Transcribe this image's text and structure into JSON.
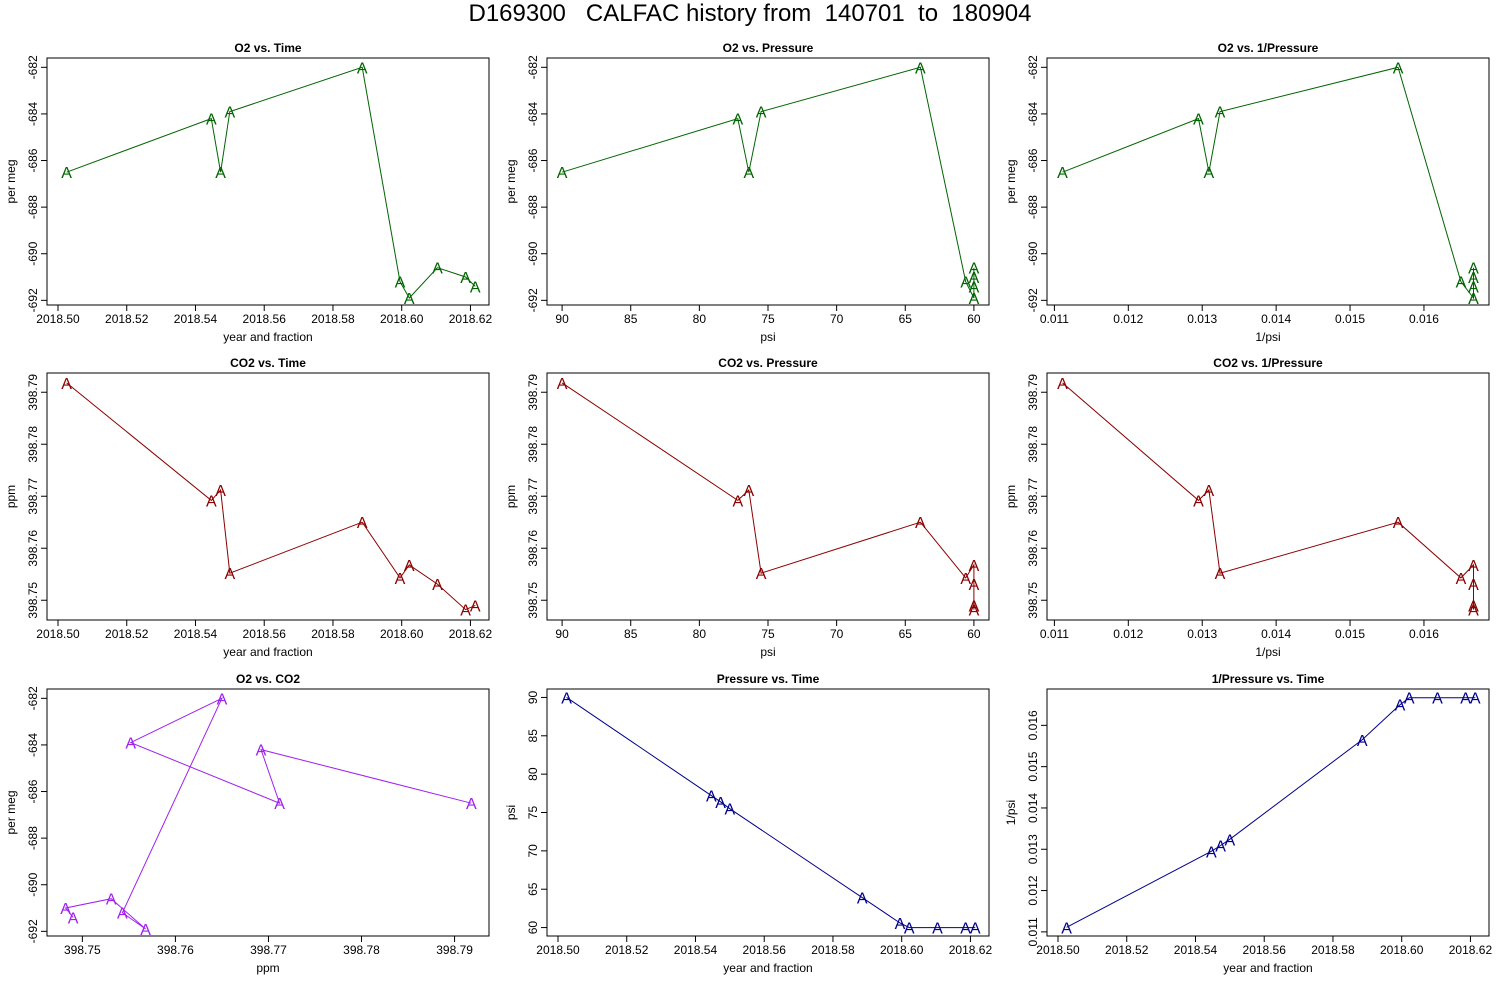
{
  "page": {
    "title": "D169300   CALFAC history from  140701  to  180904"
  },
  "colors": {
    "o2": "#006400",
    "co2": "#8b0000",
    "o2co2": "#a020f0",
    "pressure": "#00008b"
  },
  "marker_label": "A",
  "chart_data": [
    {
      "type": "line",
      "title": "O2 vs. Time",
      "xlabel": "year and fraction",
      "ylabel": "per meg",
      "color_key": "o2",
      "xreverse": false,
      "xlim": [
        2018.4968,
        2018.6254
      ],
      "ylim": [
        -692.2,
        -681.6
      ],
      "xticks": [
        2018.5,
        2018.52,
        2018.54,
        2018.56,
        2018.58,
        2018.6,
        2018.62
      ],
      "xtick_labels": [
        "2018.50",
        "2018.52",
        "2018.54",
        "2018.56",
        "2018.58",
        "2018.60",
        "2018.62"
      ],
      "yticks": [
        -682,
        -684,
        -686,
        -688,
        -690,
        -692
      ],
      "ytick_labels": [
        "-682",
        "-684",
        "-686",
        "-688",
        "-690",
        "-692"
      ],
      "x": [
        2018.5025,
        2018.5446,
        2018.5473,
        2018.55,
        2018.5885,
        2018.5995,
        2018.6022,
        2018.6104,
        2018.6186,
        2018.6214
      ],
      "y": [
        -686.5,
        -684.2,
        -686.5,
        -683.9,
        -682.0,
        -691.2,
        -691.9,
        -690.6,
        -691.0,
        -691.4
      ]
    },
    {
      "type": "line",
      "title": "O2 vs. Pressure",
      "xlabel": "psi",
      "ylabel": "per meg",
      "color_key": "o2",
      "xreverse": true,
      "xlim": [
        91.1,
        58.9
      ],
      "ylim": [
        -692.2,
        -681.6
      ],
      "xticks": [
        90,
        85,
        80,
        75,
        70,
        65,
        60
      ],
      "xtick_labels": [
        "90",
        "85",
        "80",
        "75",
        "70",
        "65",
        "60"
      ],
      "yticks": [
        -682,
        -684,
        -686,
        -688,
        -690,
        -692
      ],
      "ytick_labels": [
        "-682",
        "-684",
        "-686",
        "-688",
        "-690",
        "-692"
      ],
      "x": [
        90.0,
        77.2,
        76.4,
        75.5,
        63.9,
        60.6,
        60.0,
        60.0,
        60.0,
        60.0
      ],
      "y": [
        -686.5,
        -684.2,
        -686.5,
        -683.9,
        -682.0,
        -691.2,
        -691.9,
        -690.6,
        -691.0,
        -691.4
      ]
    },
    {
      "type": "line",
      "title": "O2 vs. 1/Pressure",
      "xlabel": "1/psi",
      "ylabel": "per meg",
      "color_key": "o2",
      "xreverse": false,
      "xlim": [
        0.0109,
        0.01688
      ],
      "ylim": [
        -692.2,
        -681.6
      ],
      "xticks": [
        0.011,
        0.012,
        0.013,
        0.014,
        0.015,
        0.016
      ],
      "xtick_labels": [
        "0.011",
        "0.012",
        "0.013",
        "0.014",
        "0.015",
        "0.016"
      ],
      "yticks": [
        -682,
        -684,
        -686,
        -688,
        -690,
        -692
      ],
      "ytick_labels": [
        "-682",
        "-684",
        "-686",
        "-688",
        "-690",
        "-692"
      ],
      "x": [
        0.01111,
        0.01295,
        0.01309,
        0.01324,
        0.01565,
        0.0165,
        0.01667,
        0.01667,
        0.01667,
        0.01667
      ],
      "y": [
        -686.5,
        -684.2,
        -686.5,
        -683.9,
        -682.0,
        -691.2,
        -691.9,
        -690.6,
        -691.0,
        -691.4
      ]
    },
    {
      "type": "line",
      "title": "CO2 vs. Time",
      "xlabel": "year and fraction",
      "ylabel": "ppm",
      "color_key": "co2",
      "xreverse": false,
      "xlim": [
        2018.4968,
        2018.6254
      ],
      "ylim": [
        398.7462,
        398.7937
      ],
      "xticks": [
        2018.5,
        2018.52,
        2018.54,
        2018.56,
        2018.58,
        2018.6,
        2018.62
      ],
      "xtick_labels": [
        "2018.50",
        "2018.52",
        "2018.54",
        "2018.56",
        "2018.58",
        "2018.60",
        "2018.62"
      ],
      "yticks": [
        398.75,
        398.76,
        398.77,
        398.78,
        398.79
      ],
      "ytick_labels": [
        "398.75",
        "398.76",
        "398.77",
        "398.78",
        "398.79"
      ],
      "x": [
        2018.5025,
        2018.5446,
        2018.5473,
        2018.55,
        2018.5885,
        2018.5995,
        2018.6022,
        2018.6104,
        2018.6186,
        2018.6214
      ],
      "y": [
        398.7918,
        398.7692,
        398.7712,
        398.7552,
        398.765,
        398.7543,
        398.7568,
        398.7531,
        398.7482,
        398.749
      ]
    },
    {
      "type": "line",
      "title": "CO2 vs. Pressure",
      "xlabel": "psi",
      "ylabel": "ppm",
      "color_key": "co2",
      "xreverse": true,
      "xlim": [
        91.1,
        58.9
      ],
      "ylim": [
        398.7462,
        398.7937
      ],
      "xticks": [
        90,
        85,
        80,
        75,
        70,
        65,
        60
      ],
      "xtick_labels": [
        "90",
        "85",
        "80",
        "75",
        "70",
        "65",
        "60"
      ],
      "yticks": [
        398.75,
        398.76,
        398.77,
        398.78,
        398.79
      ],
      "ytick_labels": [
        "398.75",
        "398.76",
        "398.77",
        "398.78",
        "398.79"
      ],
      "x": [
        90.0,
        77.2,
        76.4,
        75.5,
        63.9,
        60.6,
        60.0,
        60.0,
        60.0,
        60.0
      ],
      "y": [
        398.7918,
        398.7692,
        398.7712,
        398.7552,
        398.765,
        398.7543,
        398.7568,
        398.7531,
        398.7482,
        398.749
      ]
    },
    {
      "type": "line",
      "title": "CO2 vs. 1/Pressure",
      "xlabel": "1/psi",
      "ylabel": "ppm",
      "color_key": "co2",
      "xreverse": false,
      "xlim": [
        0.0109,
        0.01688
      ],
      "ylim": [
        398.7462,
        398.7937
      ],
      "xticks": [
        0.011,
        0.012,
        0.013,
        0.014,
        0.015,
        0.016
      ],
      "xtick_labels": [
        "0.011",
        "0.012",
        "0.013",
        "0.014",
        "0.015",
        "0.016"
      ],
      "yticks": [
        398.75,
        398.76,
        398.77,
        398.78,
        398.79
      ],
      "ytick_labels": [
        "398.75",
        "398.76",
        "398.77",
        "398.78",
        "398.79"
      ],
      "x": [
        0.01111,
        0.01295,
        0.01309,
        0.01324,
        0.01565,
        0.0165,
        0.01667,
        0.01667,
        0.01667,
        0.01667
      ],
      "y": [
        398.7918,
        398.7692,
        398.7712,
        398.7552,
        398.765,
        398.7543,
        398.7568,
        398.7531,
        398.7482,
        398.749
      ]
    },
    {
      "type": "line",
      "title": "O2 vs. CO2",
      "xlabel": "ppm",
      "ylabel": "per meg",
      "color_key": "o2co2",
      "xreverse": false,
      "xlim": [
        398.7462,
        398.7937
      ],
      "ylim": [
        -692.2,
        -681.6
      ],
      "xticks": [
        398.75,
        398.76,
        398.77,
        398.78,
        398.79
      ],
      "xtick_labels": [
        "398.75",
        "398.76",
        "398.77",
        "398.78",
        "398.79"
      ],
      "yticks": [
        -682,
        -684,
        -686,
        -688,
        -690,
        -692
      ],
      "ytick_labels": [
        "-682",
        "-684",
        "-686",
        "-688",
        "-690",
        "-692"
      ],
      "x": [
        398.7918,
        398.7692,
        398.7712,
        398.7552,
        398.765,
        398.7543,
        398.7568,
        398.7531,
        398.7482,
        398.749
      ],
      "y": [
        -686.5,
        -684.2,
        -686.5,
        -683.9,
        -682.0,
        -691.2,
        -691.9,
        -690.6,
        -691.0,
        -691.4
      ]
    },
    {
      "type": "line",
      "title": "Pressure vs. Time",
      "xlabel": "year and fraction",
      "ylabel": "psi",
      "color_key": "pressure",
      "xreverse": false,
      "xlim": [
        2018.4968,
        2018.6254
      ],
      "ylim": [
        58.9,
        91.1
      ],
      "xticks": [
        2018.5,
        2018.52,
        2018.54,
        2018.56,
        2018.58,
        2018.6,
        2018.62
      ],
      "xtick_labels": [
        "2018.50",
        "2018.52",
        "2018.54",
        "2018.56",
        "2018.58",
        "2018.60",
        "2018.62"
      ],
      "yticks": [
        60,
        65,
        70,
        75,
        80,
        85,
        90
      ],
      "ytick_labels": [
        "60",
        "65",
        "70",
        "75",
        "80",
        "85",
        "90"
      ],
      "x": [
        2018.5025,
        2018.5446,
        2018.5473,
        2018.55,
        2018.5885,
        2018.5995,
        2018.6022,
        2018.6104,
        2018.6186,
        2018.6214
      ],
      "y": [
        90.0,
        77.2,
        76.4,
        75.5,
        63.9,
        60.6,
        60.0,
        60.0,
        60.0,
        60.0
      ]
    },
    {
      "type": "line",
      "title": "1/Pressure vs. Time",
      "xlabel": "year and fraction",
      "ylabel": "1/psi",
      "color_key": "pressure",
      "xreverse": false,
      "xlim": [
        2018.4968,
        2018.6254
      ],
      "ylim": [
        0.0109,
        0.01688
      ],
      "xticks": [
        2018.5,
        2018.52,
        2018.54,
        2018.56,
        2018.58,
        2018.6,
        2018.62
      ],
      "xtick_labels": [
        "2018.50",
        "2018.52",
        "2018.54",
        "2018.56",
        "2018.58",
        "2018.60",
        "2018.62"
      ],
      "yticks": [
        0.011,
        0.012,
        0.013,
        0.014,
        0.015,
        0.016
      ],
      "ytick_labels": [
        "0.011",
        "0.012",
        "0.013",
        "0.014",
        "0.015",
        "0.016"
      ],
      "x": [
        2018.5025,
        2018.5446,
        2018.5473,
        2018.55,
        2018.5885,
        2018.5995,
        2018.6022,
        2018.6104,
        2018.6186,
        2018.6214
      ],
      "y": [
        0.01111,
        0.01295,
        0.01309,
        0.01324,
        0.01565,
        0.0165,
        0.01667,
        0.01667,
        0.01667,
        0.01667
      ]
    }
  ]
}
